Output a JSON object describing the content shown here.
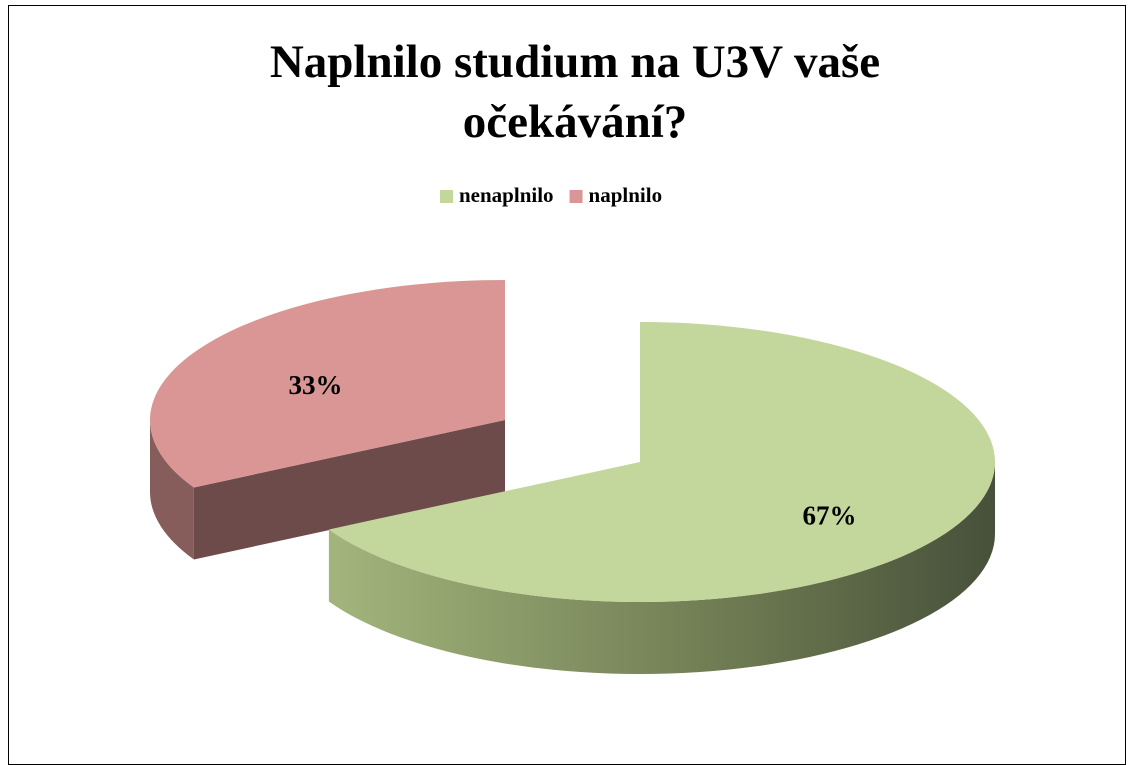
{
  "chart_data": {
    "type": "pie",
    "title": "Naplnilo studium na U3V vaše očekávání?",
    "categories": [
      "nenaplnilo",
      "naplnilo"
    ],
    "values": [
      67,
      33
    ],
    "value_labels": [
      "67%",
      "33%"
    ],
    "colors": [
      "#c3d69b",
      "#d99694"
    ],
    "legend": "top"
  }
}
